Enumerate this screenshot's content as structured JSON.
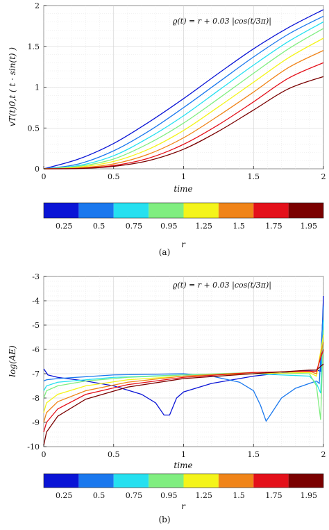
{
  "chart_data": [
    {
      "type": "line",
      "panel_caption": "(a)",
      "annotation": "ϱ(t) = r + 0.03 |cos(t/3π)|",
      "xlabel": "time",
      "ylabel": "vT(t)0,t ( t · sin(t) )",
      "xlim": [
        0,
        2
      ],
      "ylim": [
        0,
        2
      ],
      "xticks": [
        0,
        0.5,
        1,
        1.5,
        2
      ],
      "xtick_labels": [
        "0",
        "0.5",
        "1",
        "1.5",
        "2"
      ],
      "yticks": [
        0,
        0.5,
        1,
        1.5,
        2
      ],
      "ytick_labels": [
        "0",
        "0.5",
        "1",
        "1.5",
        "2"
      ],
      "grid": true,
      "x": [
        0,
        0.25,
        0.5,
        0.75,
        1,
        1.25,
        1.5,
        1.75,
        2
      ],
      "series": [
        {
          "values": [
            0,
            0.12,
            0.31,
            0.57,
            0.86,
            1.17,
            1.47,
            1.73,
            1.95
          ]
        },
        {
          "values": [
            0,
            0.06,
            0.22,
            0.46,
            0.75,
            1.06,
            1.37,
            1.65,
            1.87
          ]
        },
        {
          "values": [
            0,
            0.04,
            0.16,
            0.38,
            0.65,
            0.96,
            1.27,
            1.56,
            1.8
          ]
        },
        {
          "values": [
            0,
            0.03,
            0.12,
            0.31,
            0.56,
            0.86,
            1.17,
            1.47,
            1.72
          ]
        },
        {
          "values": [
            0,
            0.02,
            0.09,
            0.24,
            0.47,
            0.76,
            1.06,
            1.36,
            1.6
          ]
        },
        {
          "values": [
            0,
            0.01,
            0.06,
            0.18,
            0.38,
            0.65,
            0.94,
            1.24,
            1.45
          ]
        },
        {
          "values": [
            0,
            0.005,
            0.04,
            0.13,
            0.3,
            0.54,
            0.82,
            1.11,
            1.3
          ]
        },
        {
          "values": [
            0,
            0.003,
            0.03,
            0.1,
            0.24,
            0.46,
            0.72,
            0.98,
            1.13
          ]
        }
      ],
      "colorbar": {
        "label": "r",
        "labels": [
          "0.25",
          "0.5",
          "0.75",
          "0.95",
          "1.25",
          "1.5",
          "1.75",
          "1.95"
        ],
        "colors": [
          "#0a14d6",
          "#1a78ee",
          "#25e0f0",
          "#80ee80",
          "#f4f41a",
          "#f08418",
          "#e4101a",
          "#7a0000"
        ]
      }
    },
    {
      "type": "line",
      "panel_caption": "(b)",
      "annotation": "ϱ(t) = r + 0.03 |cos(t/3π)|",
      "xlabel": "time",
      "ylabel": "log(AE)",
      "xlim": [
        0,
        2
      ],
      "ylim": [
        -10,
        -3
      ],
      "xticks": [
        0,
        0.5,
        1,
        1.5,
        2
      ],
      "xtick_labels": [
        "0",
        "0.5",
        "1",
        "1.5",
        "2"
      ],
      "yticks": [
        -10,
        -9,
        -8,
        -7,
        -6,
        -5,
        -4,
        -3
      ],
      "ytick_labels": [
        "-10",
        "-9",
        "-8",
        "-7",
        "-6",
        "-5",
        "-4",
        "-3"
      ],
      "grid": true,
      "series": [
        {
          "points": [
            [
              0,
              -6.8
            ],
            [
              0.03,
              -7.05
            ],
            [
              0.1,
              -7.15
            ],
            [
              0.3,
              -7.3
            ],
            [
              0.5,
              -7.5
            ],
            [
              0.7,
              -7.85
            ],
            [
              0.8,
              -8.2
            ],
            [
              0.86,
              -8.7
            ],
            [
              0.9,
              -8.7
            ],
            [
              0.95,
              -8.0
            ],
            [
              1.0,
              -7.75
            ],
            [
              1.2,
              -7.4
            ],
            [
              1.5,
              -7.1
            ],
            [
              1.8,
              -6.9
            ],
            [
              1.95,
              -6.85
            ],
            [
              1.98,
              -6.9
            ],
            [
              2.0,
              -3.8
            ]
          ]
        },
        {
          "points": [
            [
              0,
              -7.3
            ],
            [
              0.02,
              -7.25
            ],
            [
              0.1,
              -7.2
            ],
            [
              0.5,
              -7.05
            ],
            [
              1.0,
              -7.0
            ],
            [
              1.2,
              -7.1
            ],
            [
              1.4,
              -7.35
            ],
            [
              1.5,
              -7.7
            ],
            [
              1.55,
              -8.3
            ],
            [
              1.59,
              -8.95
            ],
            [
              1.62,
              -8.7
            ],
            [
              1.7,
              -8.0
            ],
            [
              1.8,
              -7.6
            ],
            [
              1.95,
              -7.3
            ],
            [
              1.97,
              -7.4
            ],
            [
              2.0,
              -4.2
            ]
          ]
        },
        {
          "points": [
            [
              0,
              -7.7
            ],
            [
              0.02,
              -7.5
            ],
            [
              0.1,
              -7.35
            ],
            [
              0.5,
              -7.15
            ],
            [
              1.0,
              -7.05
            ],
            [
              1.5,
              -7.0
            ],
            [
              1.9,
              -7.1
            ],
            [
              1.95,
              -7.4
            ],
            [
              1.98,
              -7.8
            ],
            [
              2.0,
              -4.8
            ]
          ]
        },
        {
          "points": [
            [
              0,
              -8.0
            ],
            [
              0.02,
              -7.7
            ],
            [
              0.1,
              -7.5
            ],
            [
              0.3,
              -7.3
            ],
            [
              0.6,
              -7.15
            ],
            [
              1.0,
              -7.05
            ],
            [
              1.5,
              -6.95
            ],
            [
              1.9,
              -7.0
            ],
            [
              1.95,
              -7.5
            ],
            [
              1.98,
              -8.9
            ],
            [
              2.0,
              -5.2
            ]
          ]
        },
        {
          "points": [
            [
              0,
              -8.6
            ],
            [
              0.02,
              -8.2
            ],
            [
              0.1,
              -7.85
            ],
            [
              0.3,
              -7.5
            ],
            [
              0.6,
              -7.25
            ],
            [
              1.0,
              -7.1
            ],
            [
              1.5,
              -7.0
            ],
            [
              1.9,
              -6.95
            ],
            [
              1.95,
              -7.1
            ],
            [
              2.0,
              -5.4
            ]
          ]
        },
        {
          "points": [
            [
              0,
              -9.0
            ],
            [
              0.02,
              -8.6
            ],
            [
              0.1,
              -8.15
            ],
            [
              0.3,
              -7.7
            ],
            [
              0.6,
              -7.35
            ],
            [
              1.0,
              -7.1
            ],
            [
              1.5,
              -6.95
            ],
            [
              1.9,
              -6.9
            ],
            [
              1.95,
              -7.0
            ],
            [
              2.0,
              -5.7
            ]
          ]
        },
        {
          "points": [
            [
              0,
              -9.4
            ],
            [
              0.02,
              -9.0
            ],
            [
              0.1,
              -8.45
            ],
            [
              0.3,
              -7.85
            ],
            [
              0.6,
              -7.45
            ],
            [
              1.0,
              -7.15
            ],
            [
              1.5,
              -6.95
            ],
            [
              1.9,
              -6.9
            ],
            [
              1.95,
              -6.9
            ],
            [
              2.0,
              -6.0
            ]
          ]
        },
        {
          "points": [
            [
              0,
              -9.95
            ],
            [
              0.02,
              -9.4
            ],
            [
              0.1,
              -8.75
            ],
            [
              0.3,
              -8.05
            ],
            [
              0.6,
              -7.55
            ],
            [
              1.0,
              -7.2
            ],
            [
              1.5,
              -7.0
            ],
            [
              1.9,
              -6.85
            ],
            [
              1.95,
              -6.85
            ],
            [
              2.0,
              -6.6
            ]
          ]
        }
      ],
      "colorbar": {
        "label": "r",
        "labels": [
          "0.25",
          "0.5",
          "0.75",
          "0.95",
          "1.25",
          "1.5",
          "1.75",
          "1.95"
        ],
        "colors": [
          "#0a14d6",
          "#1a78ee",
          "#25e0f0",
          "#80ee80",
          "#f4f41a",
          "#f08418",
          "#e4101a",
          "#7a0000"
        ]
      }
    }
  ]
}
